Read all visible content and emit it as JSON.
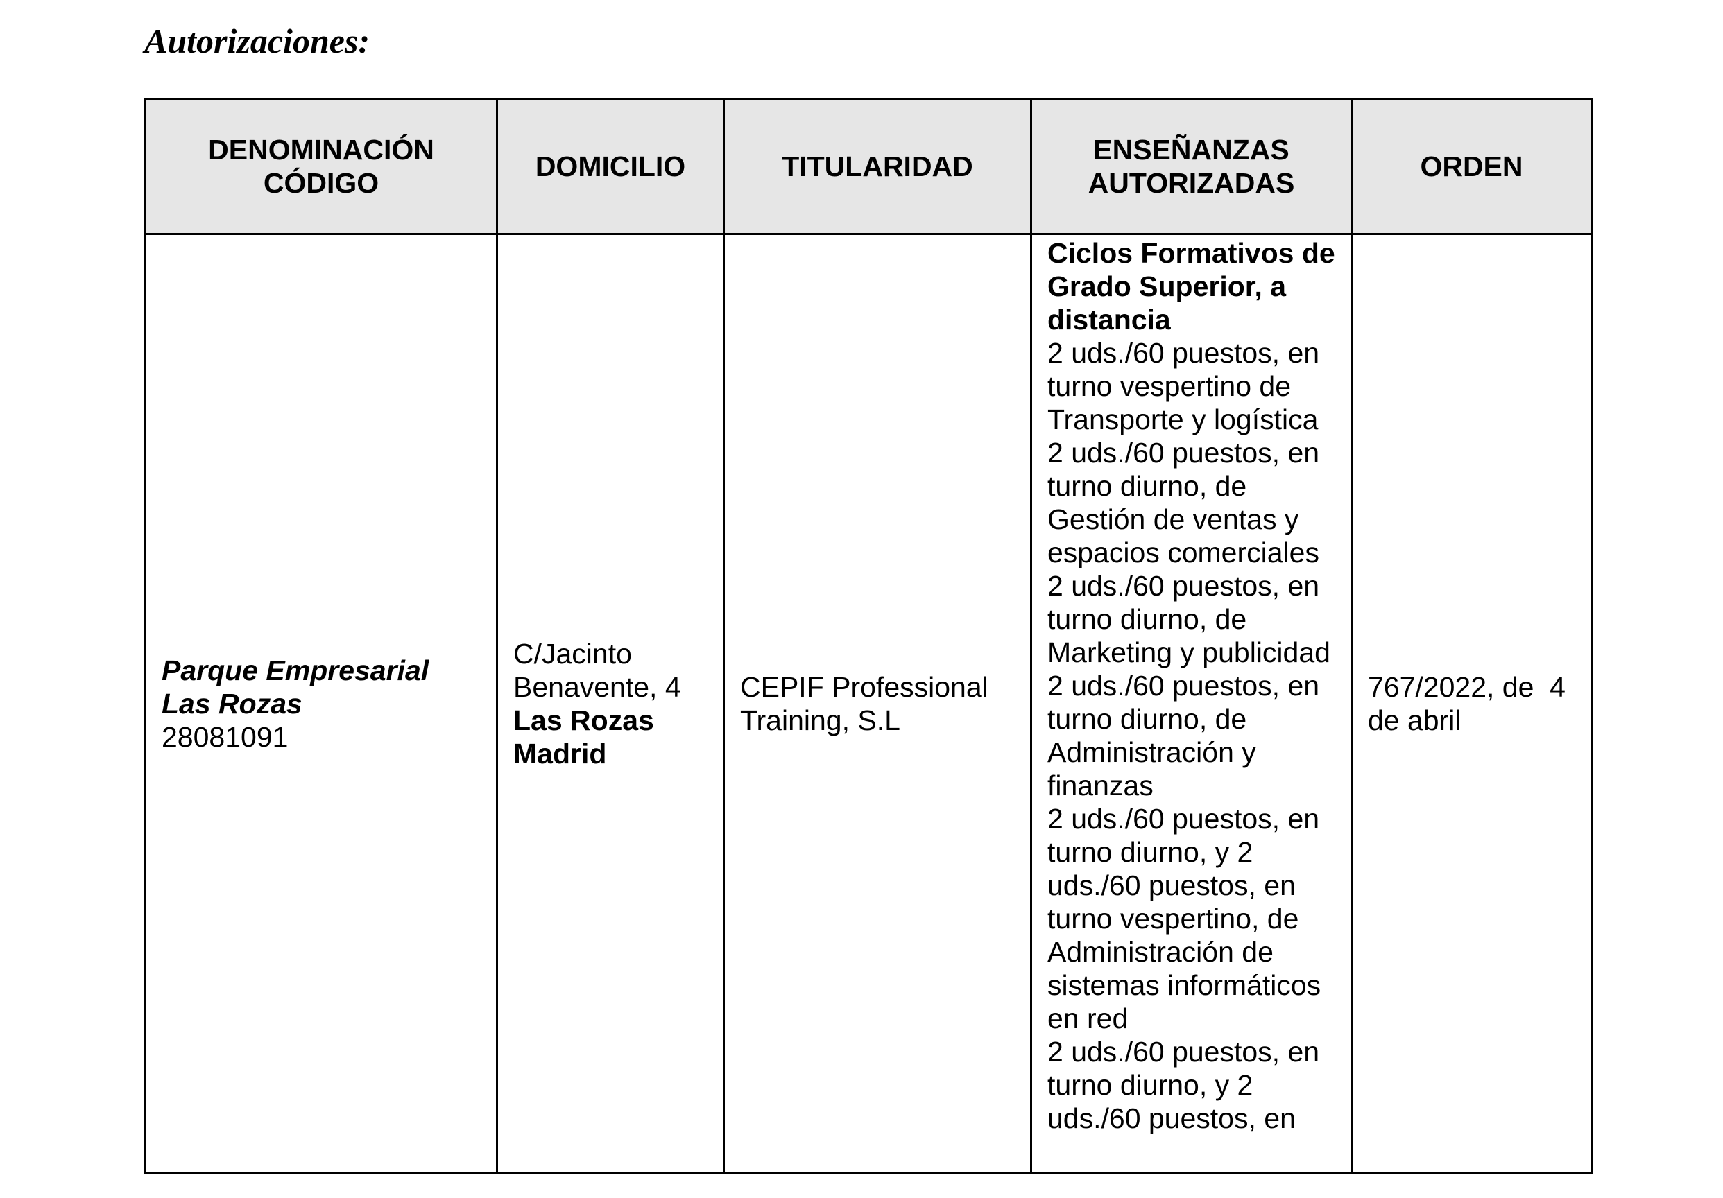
{
  "title": "Autorizaciones:",
  "table": {
    "headers": [
      [
        "DENOMINACIÓN",
        "CÓDIGO"
      ],
      [
        "DOMICILIO"
      ],
      [
        "TITULARIDAD"
      ],
      [
        "ENSEÑANZAS",
        "AUTORIZADAS"
      ],
      [
        "ORDEN"
      ]
    ],
    "row": {
      "denominacion": {
        "name": "Parque Empresarial Las Rozas",
        "code": "28081091"
      },
      "domicilio": {
        "street": "C/Jacinto Benavente, 4",
        "city": "Las Rozas Madrid"
      },
      "titularidad": "CEPIF Professional Training, S.L",
      "ensenanzas": {
        "heading": "Ciclos Formativos de Grado Superior, a distancia",
        "items": [
          "2 uds./60 puestos, en turno vespertino de Transporte y logística",
          "2 uds./60 puestos, en turno diurno, de Gestión de ventas y espacios comerciales",
          "2 uds./60 puestos, en turno diurno, de Marketing y publicidad",
          "2 uds./60 puestos, en turno diurno, de Administración y finanzas",
          "2 uds./60 puestos, en turno diurno, y 2 uds./60 puestos, en turno vespertino, de Administración de sistemas informáticos en red",
          "2 uds./60 puestos, en turno diurno, y 2 uds./60 puestos, en"
        ]
      },
      "orden": "767/2022, de  4 de abril"
    }
  }
}
